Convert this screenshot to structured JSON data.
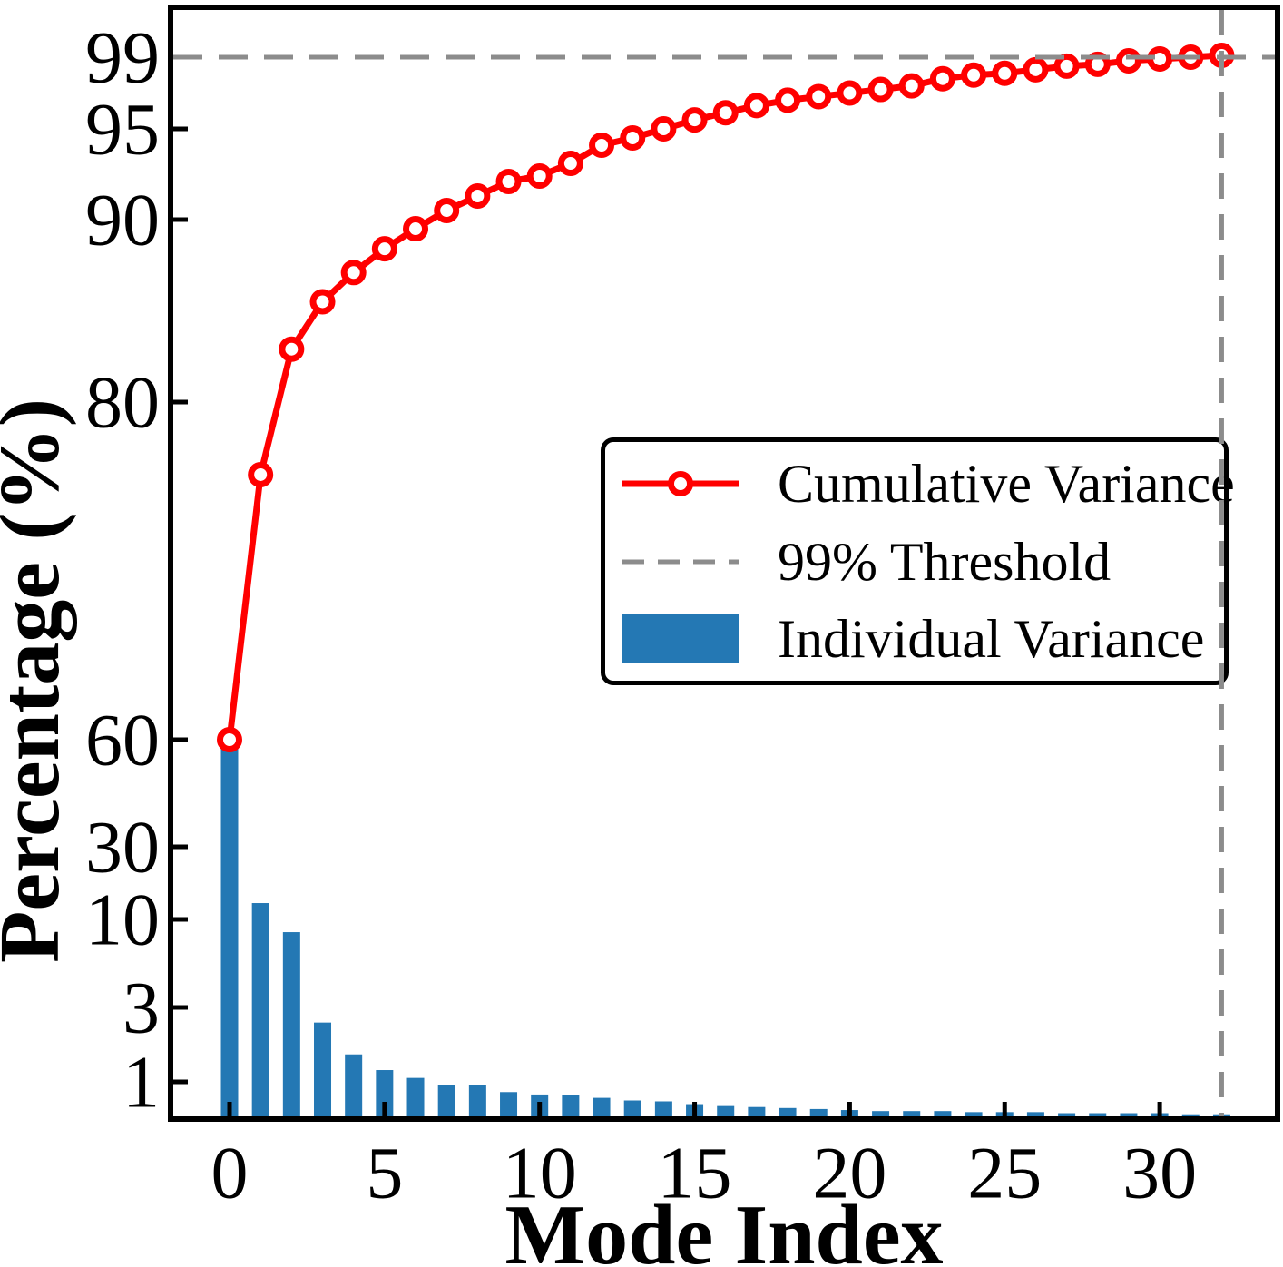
{
  "chart_data": {
    "type": "bar+line",
    "xlabel": "Mode Index",
    "ylabel": "Percentage (%)",
    "x_ticks": [
      0,
      5,
      10,
      15,
      20,
      25,
      30
    ],
    "y_ticks": [
      99,
      95,
      90,
      80,
      60,
      30,
      10,
      3,
      1
    ],
    "y_scale": "nonlinear: approximately linear above 60%, logarithmic below 60%",
    "grid": false,
    "legend_position": "center right",
    "x": [
      0,
      1,
      2,
      3,
      4,
      5,
      6,
      7,
      8,
      9,
      10,
      11,
      12,
      13,
      14,
      15,
      16,
      17,
      18,
      19,
      20,
      21,
      22,
      23,
      24,
      25,
      26,
      27,
      28,
      29,
      30,
      31,
      32
    ],
    "series": [
      {
        "name": "Cumulative Variance",
        "type": "line",
        "marker": "open-circle",
        "color": "#ff0000",
        "values": [
          60.0,
          75.7,
          82.9,
          85.5,
          87.1,
          88.4,
          89.5,
          90.5,
          91.3,
          92.1,
          92.4,
          93.1,
          94.1,
          94.5,
          95.0,
          95.5,
          95.9,
          96.3,
          96.6,
          96.8,
          97.0,
          97.2,
          97.4,
          97.8,
          98.0,
          98.1,
          98.3,
          98.5,
          98.6,
          98.8,
          98.9,
          99.0,
          99.1
        ]
      },
      {
        "name": "Individual Variance",
        "type": "bar",
        "color": "#2478b4",
        "values": [
          60.0,
          12.8,
          8.4,
          2.4,
          1.5,
          1.19,
          1.06,
          0.96,
          0.95,
          0.86,
          0.83,
          0.82,
          0.79,
          0.76,
          0.75,
          0.72,
          0.7,
          0.69,
          0.68,
          0.67,
          0.66,
          0.65,
          0.65,
          0.65,
          0.64,
          0.64,
          0.64,
          0.63,
          0.63,
          0.63,
          0.63,
          0.62,
          0.62
        ]
      },
      {
        "name": "99% Threshold",
        "type": "reference-lines",
        "style": "dashed",
        "color": "#8c8c8c",
        "horizontal_y": 99,
        "vertical_x": 32
      }
    ]
  },
  "legend": {
    "items": [
      {
        "label": "Cumulative Variance"
      },
      {
        "label": "99% Threshold"
      },
      {
        "label": "Individual Variance"
      }
    ]
  },
  "colors": {
    "line": "#ff0000",
    "bar": "#2478b4",
    "threshold": "#8c8c8c",
    "text": "#000000",
    "background": "#ffffff"
  }
}
